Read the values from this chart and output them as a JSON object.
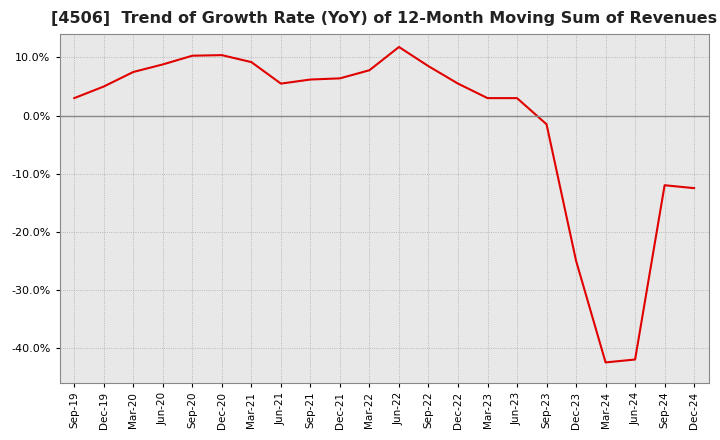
{
  "title": "[4506]  Trend of Growth Rate (YoY) of 12-Month Moving Sum of Revenues",
  "title_fontsize": 11.5,
  "line_color": "#e00000",
  "grid_color": "#aaaaaa",
  "zero_line_color": "#888888",
  "background_color": "#ffffff",
  "plot_bg_color": "#e8e8e8",
  "ylim": [
    -46,
    14
  ],
  "yticks": [
    10.0,
    0.0,
    -10.0,
    -20.0,
    -30.0,
    -40.0
  ],
  "dates": [
    "Sep-19",
    "Dec-19",
    "Mar-20",
    "Jun-20",
    "Sep-20",
    "Dec-20",
    "Mar-21",
    "Jun-21",
    "Sep-21",
    "Dec-21",
    "Mar-22",
    "Jun-22",
    "Sep-22",
    "Dec-22",
    "Mar-23",
    "Jun-23",
    "Sep-23",
    "Dec-23",
    "Mar-24",
    "Jun-24",
    "Sep-24",
    "Dec-24"
  ],
  "values": [
    3.0,
    5.0,
    7.5,
    8.8,
    10.3,
    10.4,
    9.2,
    5.5,
    6.2,
    6.4,
    7.8,
    11.8,
    8.5,
    5.5,
    3.0,
    3.0,
    -1.5,
    -25.0,
    -42.5,
    -42.0,
    -12.0,
    -12.5
  ]
}
